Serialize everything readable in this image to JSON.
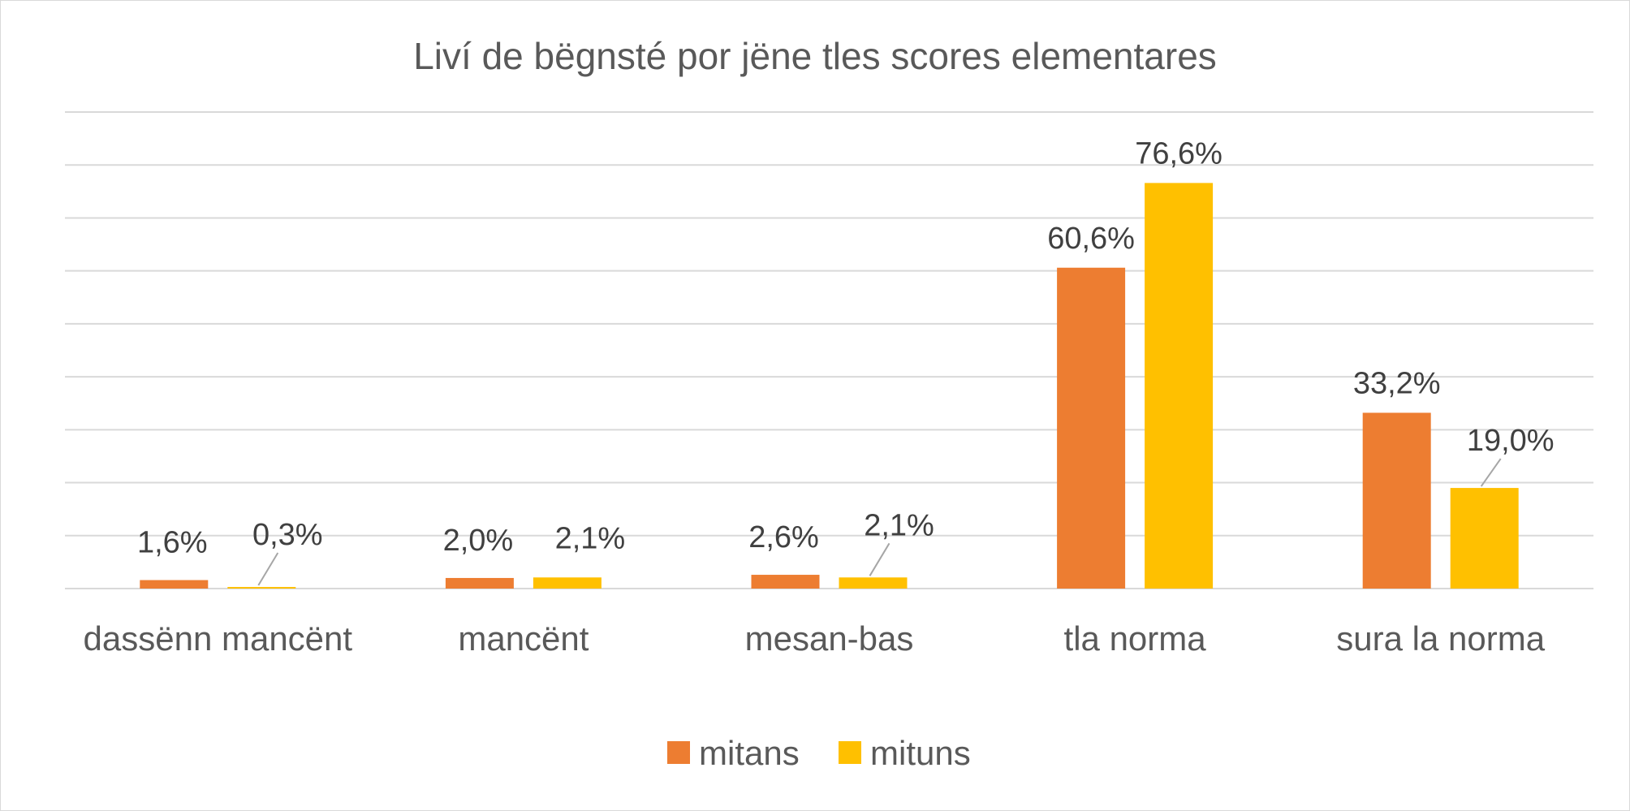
{
  "chart_data": {
    "type": "bar",
    "title": "Liví de bëgnsté por jëne tles scores elementares",
    "xlabel": "",
    "ylabel": "",
    "categories": [
      "dassënn mancënt",
      "mancënt",
      "mesan-bas",
      "tla norma",
      "sura la norma"
    ],
    "series": [
      {
        "name": "mitans",
        "color": "#ED7D31",
        "values": [
          1.6,
          2.0,
          2.6,
          60.6,
          33.2
        ],
        "labels": [
          "1,6%",
          "2,0%",
          "2,6%",
          "60,6%",
          "33,2%"
        ]
      },
      {
        "name": "mituns",
        "color": "#FFC000",
        "values": [
          0.3,
          2.1,
          2.1,
          76.6,
          19.0
        ],
        "labels": [
          "0,3%",
          "2,1%",
          "2,1%",
          "76,6%",
          "19,0%"
        ]
      }
    ],
    "ylim": [
      0,
      90
    ],
    "y_tick_step": 10,
    "y_axis_labels_shown": false,
    "grid": true,
    "legend_position": "bottom"
  }
}
